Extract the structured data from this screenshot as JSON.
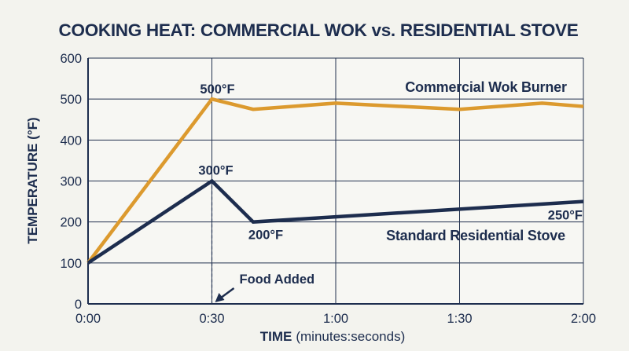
{
  "chart_data": {
    "type": "line",
    "title": "COOKING HEAT: COMMERCIAL WOK vs. RESIDENTIAL STOVE",
    "xlabel_bold": "TIME",
    "xlabel_rest": "(minutes:seconds)",
    "ylabel": "TEMPERATURE (°F)",
    "xlim": [
      0,
      120
    ],
    "ylim": [
      0,
      600
    ],
    "x_ticks": [
      {
        "value": 0,
        "label": "0:00"
      },
      {
        "value": 30,
        "label": "0:30"
      },
      {
        "value": 60,
        "label": "1:00"
      },
      {
        "value": 90,
        "label": "1:30"
      },
      {
        "value": 120,
        "label": "2:00"
      }
    ],
    "y_ticks": [
      0,
      100,
      200,
      300,
      400,
      500,
      600
    ],
    "grid": true,
    "series": [
      {
        "name": "Commercial Wok Burner",
        "color": "#dc9a2e",
        "points": [
          [
            0,
            100
          ],
          [
            30,
            500
          ],
          [
            40,
            475
          ],
          [
            60,
            490
          ],
          [
            90,
            475
          ],
          [
            110,
            490
          ],
          [
            120,
            482
          ]
        ]
      },
      {
        "name": "Standard Residential Stove",
        "color": "#1d2d4e",
        "points": [
          [
            0,
            100
          ],
          [
            30,
            300
          ],
          [
            40,
            200
          ],
          [
            120,
            250
          ]
        ]
      }
    ],
    "annotations": [
      {
        "text": "500°F",
        "x": 30,
        "y": 500
      },
      {
        "text": "300°F",
        "x": 30,
        "y": 300
      },
      {
        "text": "200°F",
        "x": 40,
        "y": 200
      },
      {
        "text": "250°F",
        "x": 120,
        "y": 250
      },
      {
        "text": "Food Added",
        "x": 30,
        "y": 0
      }
    ]
  }
}
